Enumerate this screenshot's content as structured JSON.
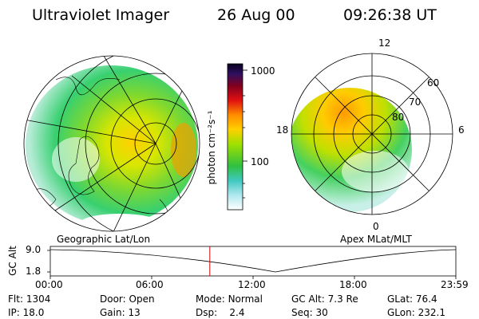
{
  "header": {
    "instrument": "Ultraviolet Imager",
    "date": "26 Aug 00",
    "time": "09:26:38 UT"
  },
  "left_panel": {
    "caption": "Geographic Lat/Lon"
  },
  "right_panel": {
    "caption": "Apex MLat/MLT",
    "mlt_labels": {
      "top": "12",
      "left": "18",
      "right": "6",
      "bottom": "0"
    },
    "lat_labels": [
      "60",
      "70",
      "80"
    ]
  },
  "colorbar": {
    "unit": "photon cm⁻²s⁻¹",
    "ticks": [
      "1000",
      "100"
    ]
  },
  "orbit_plot": {
    "ylabel": "GC Alt",
    "y_ticks": [
      "9.0",
      "1.8"
    ],
    "x_ticks": [
      "00:00",
      "06:00",
      "12:00",
      "18:00",
      "23:59"
    ],
    "current_time_hours": 9.44,
    "marker_color": "#d00000"
  },
  "info": {
    "row1": [
      {
        "label": "Flt:",
        "value": "1304"
      },
      {
        "label": "Door:",
        "value": "Open"
      },
      {
        "label": "Mode:",
        "value": "Normal"
      },
      {
        "label": "GC Alt:",
        "value": "7.3 Re"
      },
      {
        "label": "GLat:",
        "value": "76.4"
      }
    ],
    "row2": [
      {
        "label": "IP:",
        "value": "18.0"
      },
      {
        "label": "Gain:",
        "value": "13"
      },
      {
        "label": "Dsp:",
        "value": "2.4"
      },
      {
        "label": "Seq:",
        "value": "30"
      },
      {
        "label": "GLon:",
        "value": "232.1"
      }
    ]
  }
}
